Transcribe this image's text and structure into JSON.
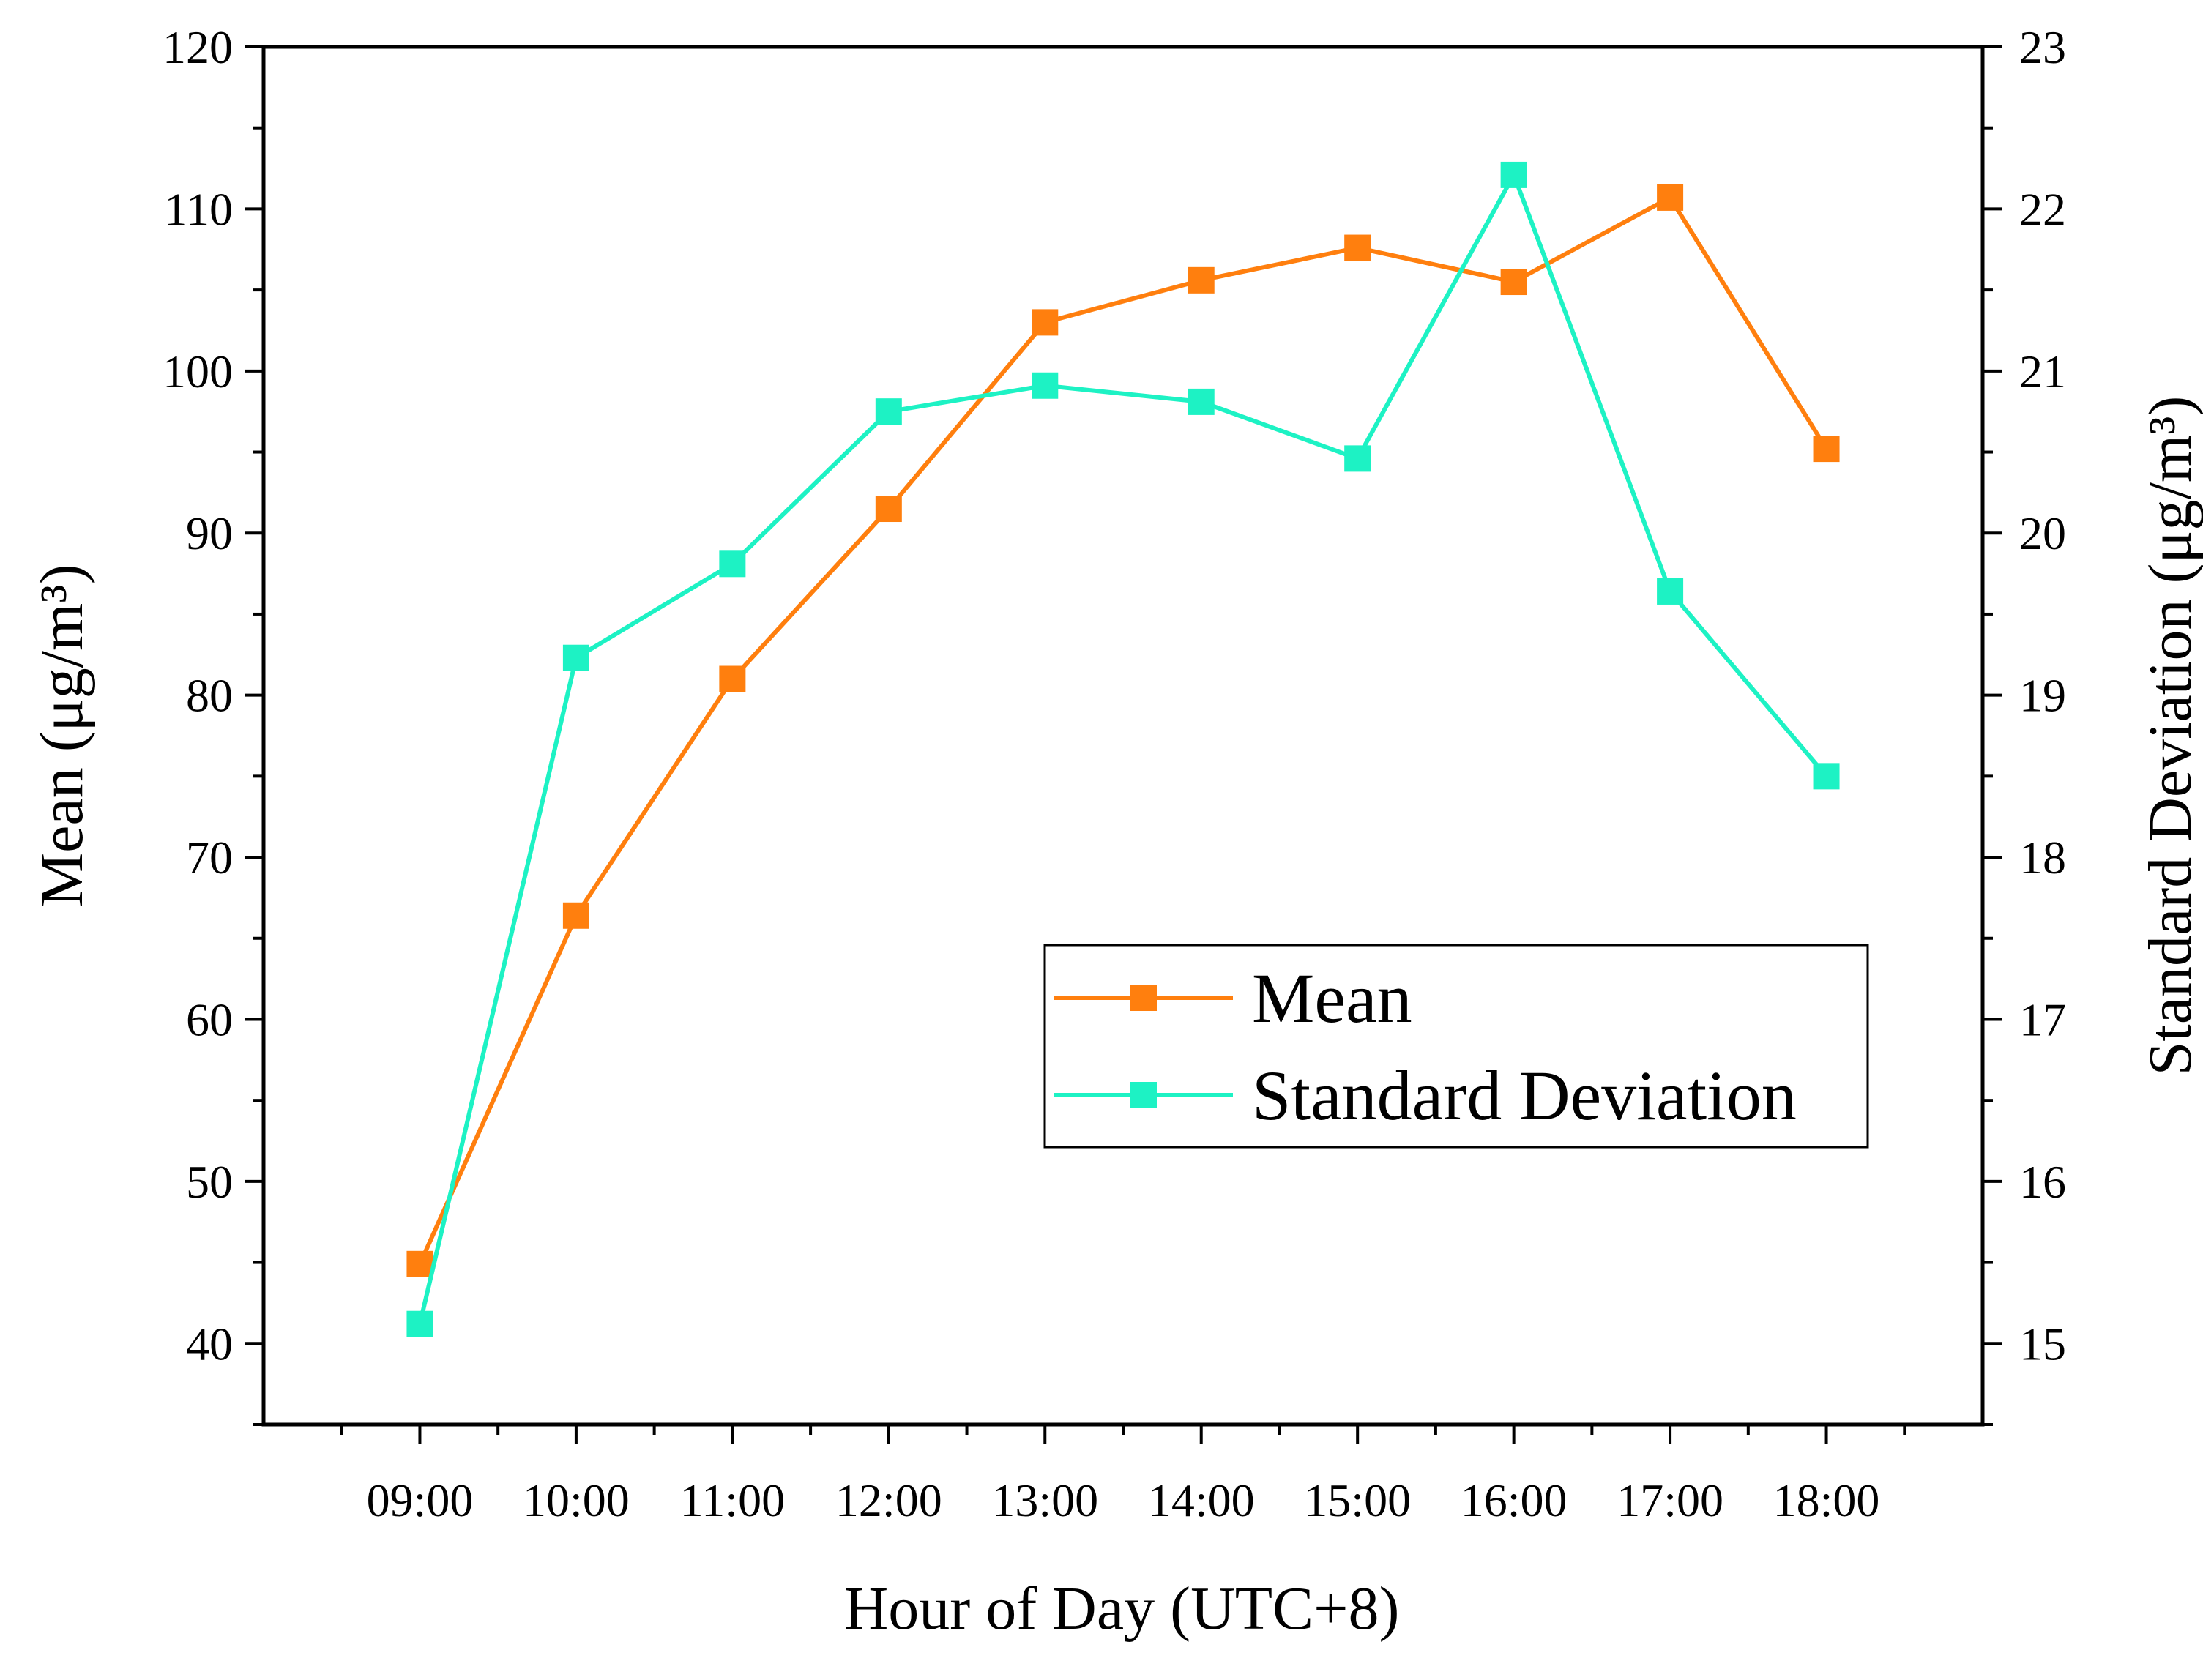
{
  "chart_data": {
    "type": "line",
    "categories": [
      "09:00",
      "10:00",
      "11:00",
      "12:00",
      "13:00",
      "14:00",
      "15:00",
      "16:00",
      "17:00",
      "18:00"
    ],
    "xlabel": "Hour of  Day (UTC+8)",
    "ylabel_left": "Mean (μg/m³)",
    "ylabel_right": "Standard Deviation (μg/m³)",
    "ylim_left": [
      35,
      120
    ],
    "ylim_right": [
      14.5,
      23
    ],
    "yticks_left": [
      40,
      50,
      60,
      70,
      80,
      90,
      100,
      110,
      120
    ],
    "yticks_right": [
      15,
      16,
      17,
      18,
      19,
      20,
      21,
      22,
      23
    ],
    "series": [
      {
        "name": "Mean",
        "axis": "left",
        "color": "#FF7F0E",
        "marker": "square",
        "values": [
          44.9,
          66.4,
          81.0,
          91.5,
          103.0,
          105.6,
          107.6,
          105.5,
          110.7,
          95.2
        ]
      },
      {
        "name": "Standard Deviation",
        "axis": "right",
        "color": "#1DF2C4",
        "marker": "square",
        "values": [
          15.12,
          19.23,
          19.81,
          20.75,
          20.91,
          20.81,
          20.46,
          22.21,
          19.64,
          18.5
        ]
      }
    ],
    "legend": {
      "position": "lower-right",
      "entries": [
        "Mean",
        "Standard Deviation"
      ]
    }
  }
}
